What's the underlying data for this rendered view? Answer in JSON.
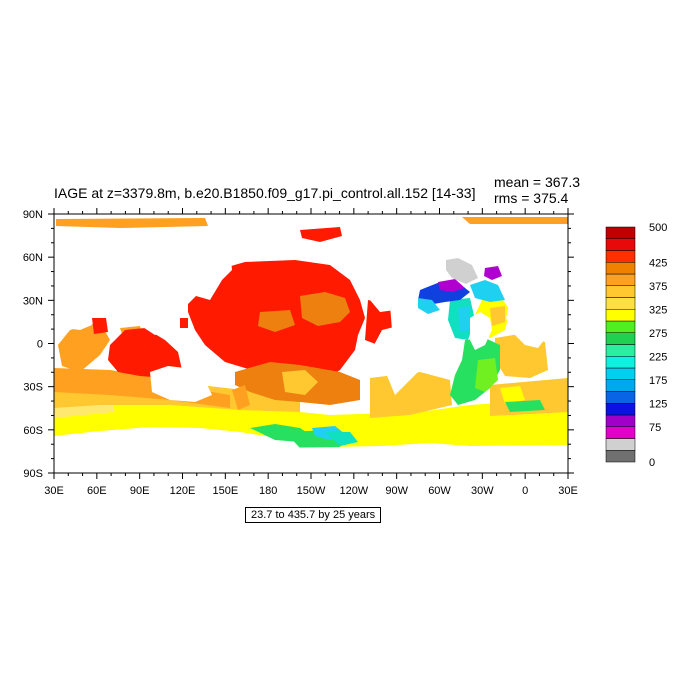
{
  "title": {
    "main": "IAGE at z=3379.8m, b.e20.B1850.f09_g17.pi_control.all.152 [14-33]",
    "mean": "mean = 367.3",
    "rms": "rms = 375.4"
  },
  "range_label": "23.7 to 435.7 by 25 years",
  "map": {
    "lon_ticks": [
      "30E",
      "60E",
      "90E",
      "120E",
      "150E",
      "180",
      "150W",
      "120W",
      "90W",
      "60W",
      "30W",
      "0",
      "30E"
    ],
    "lat_ticks": [
      "90N",
      "60N",
      "30N",
      "0",
      "30S",
      "60S",
      "90S"
    ]
  },
  "colorbar": {
    "colors": [
      "#707070",
      "#d0d0d0",
      "#e400c8",
      "#a000c8",
      "#0a14e0",
      "#0a64e6",
      "#00a8f0",
      "#00d0f0",
      "#10f0e0",
      "#28f0a0",
      "#20d050",
      "#50f020",
      "#ffff00",
      "#ffe040",
      "#ffc830",
      "#ffa020",
      "#f08000",
      "#ff3000",
      "#e80a0a",
      "#c00000"
    ],
    "labels": [
      "0",
      "75",
      "125",
      "175",
      "225",
      "275",
      "325",
      "375",
      "425",
      "500"
    ]
  },
  "colors": {
    "red": "#ff1a00",
    "dark_orange": "#ee8010",
    "orange": "#ffa020",
    "light_orange": "#ffc830",
    "yellow": "#ffff00",
    "pale_yellow": "#ffe870",
    "green": "#28e060",
    "lime": "#70f020",
    "teal": "#10e0c0",
    "cyan": "#20d0f0",
    "blue": "#1040e0",
    "purple": "#b000d0",
    "gray": "#d0d0d0"
  }
}
